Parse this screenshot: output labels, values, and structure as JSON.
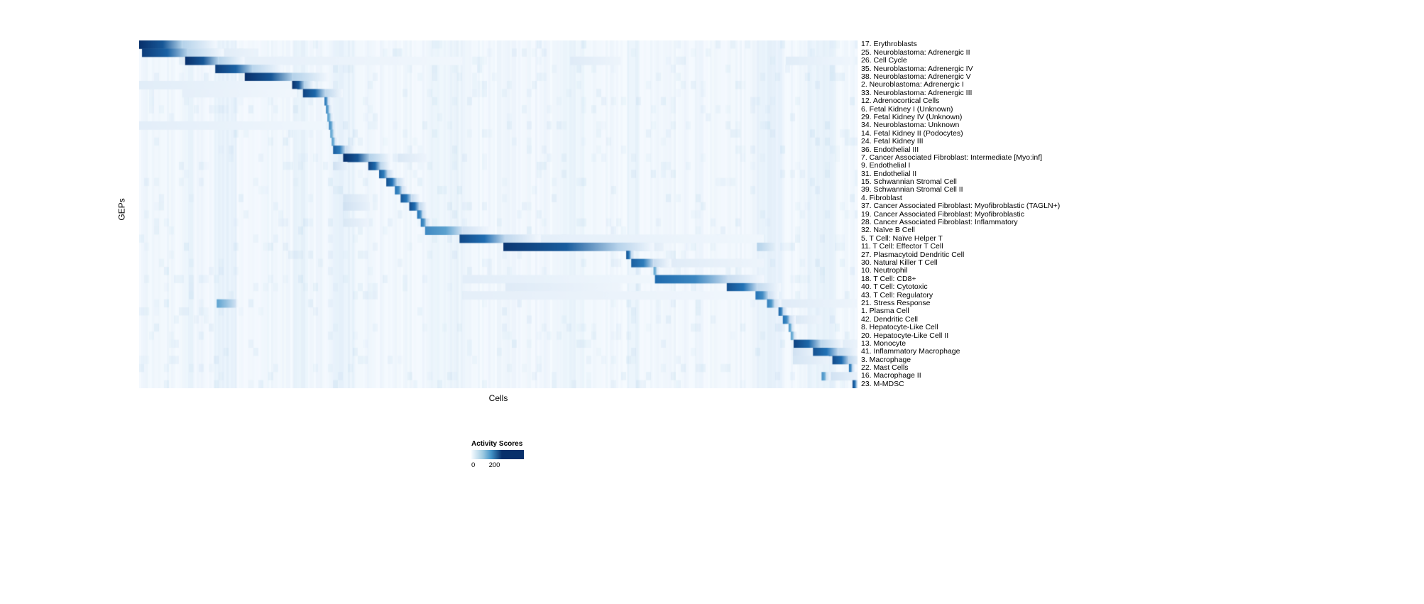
{
  "figure": {
    "x_axis_label": "Cells",
    "y_axis_label": "GEPs",
    "background_color": "#ffffff"
  },
  "legend": {
    "title": "Activity Scores",
    "tick_min": "0",
    "tick_max": "200",
    "gradient_stops": [
      "#f7fbff 0%",
      "#9ecae1 22%",
      "#4292c6 38%",
      "#08306b 58%",
      "#08306b 100%"
    ]
  },
  "chart_data": {
    "type": "heatmap",
    "title": "",
    "xlabel": "Cells",
    "ylabel": "GEPs",
    "colormap": "Blues",
    "colormap_hex": [
      "#f7fbff",
      "#c6dbef",
      "#6baed6",
      "#2171b5",
      "#08306b"
    ],
    "color_scale": {
      "min": 0,
      "max": 200,
      "label": "Activity Scores"
    },
    "x_axis_ticks": "none (individual cells, unlabeled columns)",
    "layout": {
      "grid": false,
      "legend_position": "bottom-center",
      "row_labels_position": "right"
    },
    "rows": [
      {
        "label": "17. Erythroblasts",
        "block": [
          0.0,
          0.06
        ],
        "value": 200
      },
      {
        "label": "25. Neuroblastoma: Adrenergic II",
        "block": [
          0.004,
          0.068
        ],
        "value": 190,
        "extras": [
          [
            0.068,
            0.16,
            35
          ]
        ]
      },
      {
        "label": "26. Cell Cycle",
        "block": [
          0.064,
          0.11
        ],
        "value": 200,
        "extras": [
          [
            0.11,
            0.45,
            18
          ],
          [
            0.6,
            0.67,
            25
          ],
          [
            0.9,
            0.99,
            22
          ]
        ]
      },
      {
        "label": "35. Neuroblastoma: Adrenergic IV",
        "block": [
          0.106,
          0.158
        ],
        "value": 190
      },
      {
        "label": "38. Neuroblastoma: Adrenergic V",
        "block": [
          0.147,
          0.214
        ],
        "value": 200
      },
      {
        "label": "2. Neuroblastoma: Adrenergic I",
        "block": [
          0.213,
          0.23
        ],
        "value": 200,
        "extras": [
          [
            0.0,
            0.213,
            22
          ]
        ]
      },
      {
        "label": "33. Neuroblastoma: Adrenergic III",
        "block": [
          0.228,
          0.259
        ],
        "value": 185,
        "extras": [
          [
            0.06,
            0.22,
            18
          ]
        ]
      },
      {
        "label": "12. Adrenocortical Cells",
        "block": [
          0.258,
          0.263
        ],
        "value": 150
      },
      {
        "label": "6. Fetal Kidney I (Unknown)",
        "block": [
          0.26,
          0.265
        ],
        "value": 130
      },
      {
        "label": "29. Fetal Kidney IV (Unknown)",
        "block": [
          0.262,
          0.267
        ],
        "value": 115
      },
      {
        "label": "34. Neuroblastoma: Unknown",
        "block": [
          0.264,
          0.27
        ],
        "value": 130,
        "extras": [
          [
            0.0,
            0.26,
            20
          ]
        ]
      },
      {
        "label": "14. Fetal Kidney II (Podocytes)",
        "block": [
          0.266,
          0.271
        ],
        "value": 110
      },
      {
        "label": "24. Fetal Kidney III",
        "block": [
          0.268,
          0.273
        ],
        "value": 115
      },
      {
        "label": "36. Endothelial III",
        "block": [
          0.27,
          0.287
        ],
        "value": 165
      },
      {
        "label": "7. Cancer Associated Fibroblast: Intermediate [Myo:inf]",
        "block": [
          0.284,
          0.321
        ],
        "value": 200,
        "extras": [
          [
            0.36,
            0.4,
            30
          ]
        ]
      },
      {
        "label": "9. Endothelial I",
        "block": [
          0.319,
          0.336
        ],
        "value": 185,
        "extras": [
          [
            0.27,
            0.29,
            40
          ]
        ]
      },
      {
        "label": "31. Endothelial II",
        "block": [
          0.334,
          0.346
        ],
        "value": 165
      },
      {
        "label": "15. Schwannian Stromal Cell",
        "block": [
          0.344,
          0.359
        ],
        "value": 175
      },
      {
        "label": "39. Schwannian Stromal Cell II",
        "block": [
          0.356,
          0.366
        ],
        "value": 150
      },
      {
        "label": "4. Fibroblast",
        "block": [
          0.364,
          0.379
        ],
        "value": 170,
        "extras": [
          [
            0.284,
            0.32,
            35
          ]
        ]
      },
      {
        "label": "37. Cancer Associated Fibroblast: Myofibroblastic (TAGLN+)",
        "block": [
          0.376,
          0.39
        ],
        "value": 180,
        "extras": [
          [
            0.284,
            0.321,
            40
          ]
        ]
      },
      {
        "label": "19. Cancer Associated Fibroblast: Myofibroblastic",
        "block": [
          0.387,
          0.395
        ],
        "value": 150
      },
      {
        "label": "28. Cancer Associated Fibroblast: Inflammatory",
        "block": [
          0.392,
          0.4
        ],
        "value": 145,
        "extras": [
          [
            0.284,
            0.32,
            30
          ]
        ]
      },
      {
        "label": "32. Naïve B Cell",
        "block": [
          0.398,
          0.45
        ],
        "value": 130
      },
      {
        "label": "5. T Cell: Naïve Helper T",
        "block": [
          0.446,
          0.509
        ],
        "value": 180,
        "extras": [
          [
            0.509,
            0.87,
            20
          ]
        ]
      },
      {
        "label": "11. T Cell: Effector T Cell",
        "block": [
          0.507,
          0.667
        ],
        "value": 195,
        "extras": [
          [
            0.667,
            0.73,
            45
          ],
          [
            0.86,
            0.885,
            60
          ]
        ]
      },
      {
        "label": "27. Plasmacytoid Dendritic Cell",
        "block": [
          0.678,
          0.685
        ],
        "value": 175
      },
      {
        "label": "30. Natural Killer T Cell",
        "block": [
          0.685,
          0.716
        ],
        "value": 165,
        "extras": [
          [
            0.72,
            0.87,
            25
          ]
        ]
      },
      {
        "label": "10. Neutrophil",
        "block": [
          0.716,
          0.721
        ],
        "value": 110
      },
      {
        "label": "18. T Cell: CD8+",
        "block": [
          0.718,
          0.82
        ],
        "value": 155,
        "extras": [
          [
            0.45,
            0.72,
            20
          ],
          [
            0.82,
            0.87,
            40
          ]
        ]
      },
      {
        "label": "40. T Cell: Cytotoxic",
        "block": [
          0.818,
          0.86
        ],
        "value": 175,
        "extras": [
          [
            0.51,
            0.67,
            25
          ]
        ]
      },
      {
        "label": "43. T Cell: Regulatory",
        "block": [
          0.858,
          0.876
        ],
        "value": 150,
        "extras": [
          [
            0.45,
            0.86,
            18
          ]
        ]
      },
      {
        "label": "21. Stress Response",
        "block": [
          0.874,
          0.885
        ],
        "value": 140,
        "extras": [
          [
            0.108,
            0.135,
            110
          ],
          [
            0.885,
            1.0,
            25
          ]
        ]
      },
      {
        "label": "1. Plasma Cell",
        "block": [
          0.89,
          0.897
        ],
        "value": 160
      },
      {
        "label": "42. Dendritic Cell",
        "block": [
          0.896,
          0.906
        ],
        "value": 150,
        "extras": [
          [
            0.91,
            0.95,
            30
          ]
        ]
      },
      {
        "label": "8. Hepatocyte-Like Cell",
        "block": [
          0.904,
          0.909
        ],
        "value": 120
      },
      {
        "label": "20. Hepatocyte-Like Cell II",
        "block": [
          0.907,
          0.912
        ],
        "value": 110
      },
      {
        "label": "13. Monocyte",
        "block": [
          0.911,
          0.949
        ],
        "value": 185,
        "extras": [
          [
            0.95,
            1.0,
            35
          ]
        ]
      },
      {
        "label": "41. Inflammatory Macrophage",
        "block": [
          0.938,
          0.973
        ],
        "value": 175,
        "extras": [
          [
            0.91,
            0.938,
            40
          ]
        ]
      },
      {
        "label": "3. Macrophage",
        "block": [
          0.965,
          0.988
        ],
        "value": 180,
        "extras": [
          [
            0.91,
            0.96,
            35
          ]
        ]
      },
      {
        "label": "22. Mast Cells",
        "block": [
          0.988,
          0.993
        ],
        "value": 150
      },
      {
        "label": "16. Macrophage II",
        "block": [
          0.95,
          0.957
        ],
        "value": 125,
        "extras": [
          [
            0.96,
            1.0,
            40
          ]
        ]
      },
      {
        "label": "23. M-MDSC",
        "block": [
          0.993,
          0.999
        ],
        "value": 180
      }
    ],
    "bands": [
      {
        "x0": 0.065,
        "x1": 0.075,
        "alpha": 0.05
      },
      {
        "x0": 0.105,
        "x1": 0.135,
        "alpha": 0.06
      },
      {
        "x0": 0.215,
        "x1": 0.235,
        "alpha": 0.05
      },
      {
        "x0": 0.27,
        "x1": 0.3,
        "alpha": 0.05
      },
      {
        "x0": 0.4,
        "x1": 0.45,
        "alpha": 0.04
      },
      {
        "x0": 0.585,
        "x1": 0.62,
        "alpha": 0.04
      },
      {
        "x0": 0.68,
        "x1": 0.695,
        "alpha": 0.05
      },
      {
        "x0": 0.86,
        "x1": 0.895,
        "alpha": 0.06
      },
      {
        "x0": 0.93,
        "x1": 0.97,
        "alpha": 0.05
      }
    ]
  }
}
